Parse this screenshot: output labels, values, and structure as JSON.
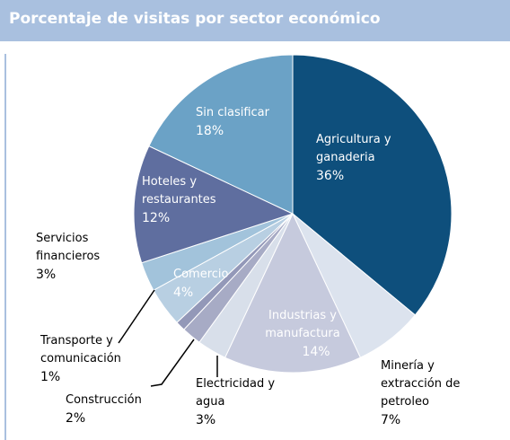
{
  "chart_data": {
    "type": "pie",
    "title": "Porcentaje de visitas por sector económico",
    "categories": [
      "Agricultura y ganaderia",
      "Minería y extracción de petroleo",
      "Industrias  y manufactura",
      "Electricidad y agua",
      "Construcción",
      "Transporte y comunicación",
      "Comercio",
      "Servicios financieros",
      "Hoteles y restaurantes",
      "Sin clasificar"
    ],
    "values": [
      36,
      7,
      14,
      3,
      2,
      1,
      4,
      3,
      12,
      18
    ],
    "value_labels": [
      "36%",
      "7%",
      "14%",
      "3%",
      "2%",
      "1%",
      "4%",
      "3%",
      "12%",
      "18%"
    ],
    "colors": [
      "#0e4f7c",
      "#dce3ee",
      "#c6cadd",
      "#d8dfea",
      "#a7abc5",
      "#9398b8",
      "#b8cfe2",
      "#a2c3db",
      "#5f6e9f",
      "#6ba2c6"
    ]
  }
}
